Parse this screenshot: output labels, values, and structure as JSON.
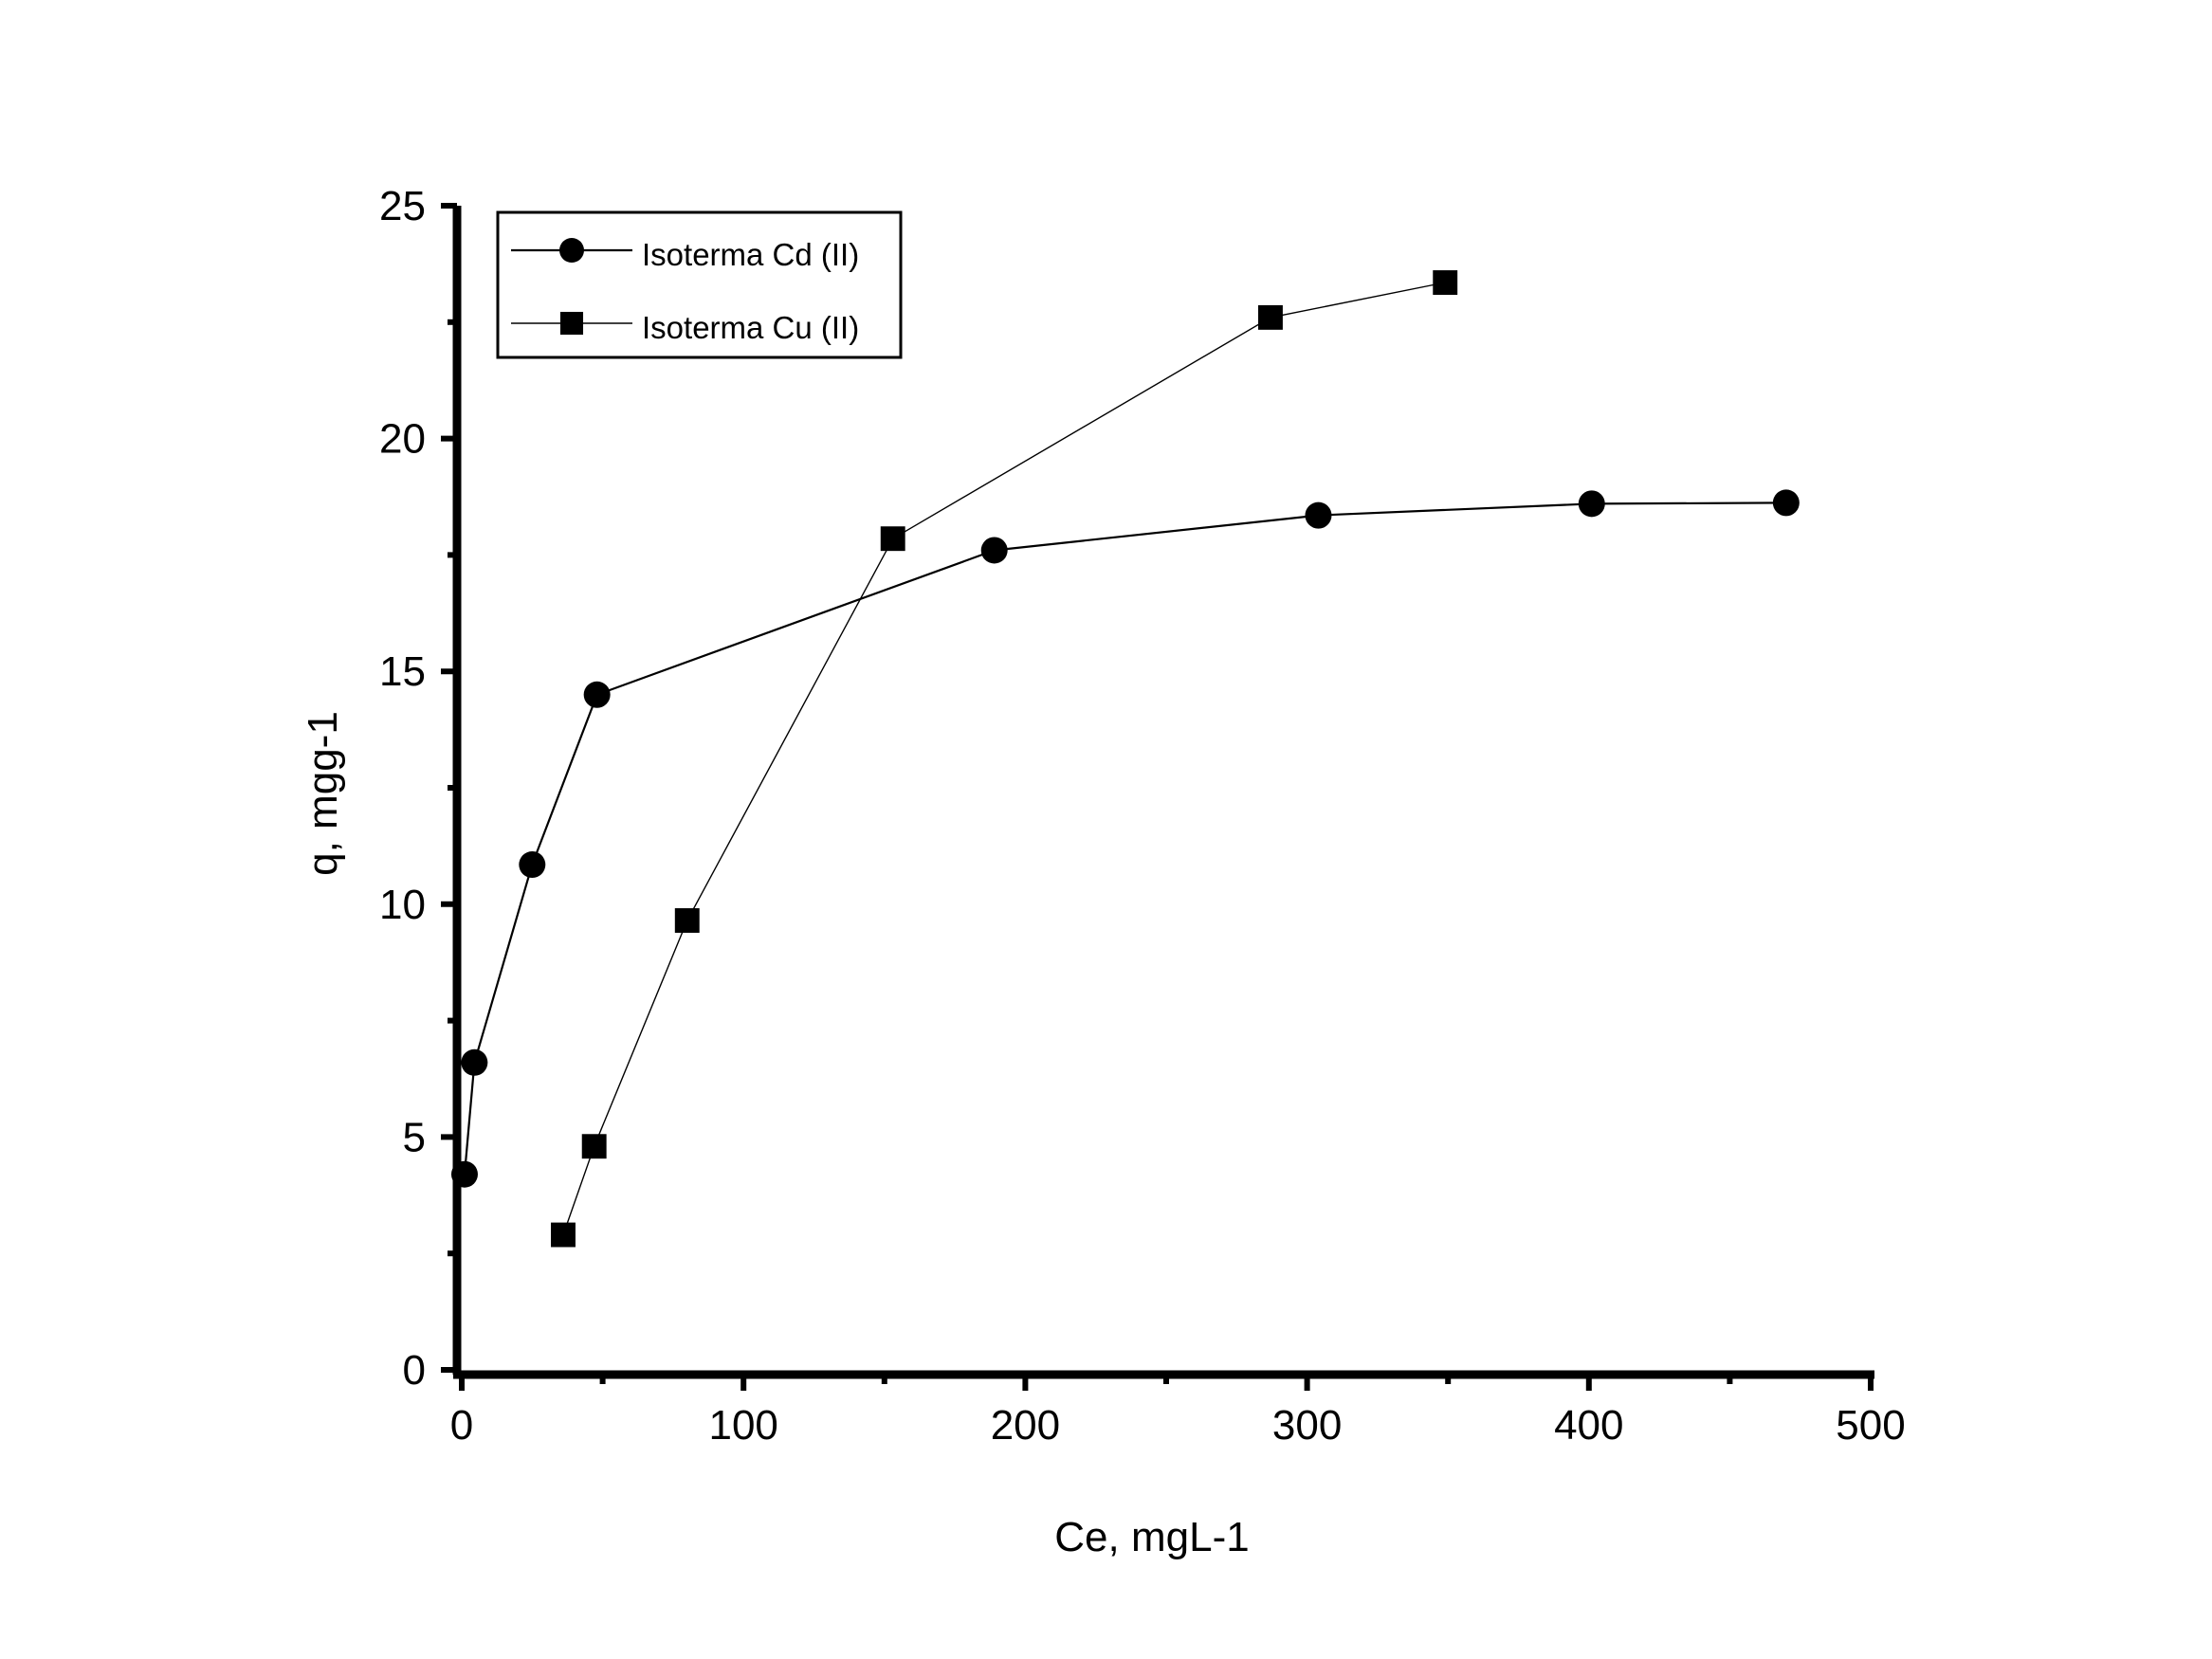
{
  "chart_data": {
    "type": "line",
    "title": "",
    "xlabel": "Ce, mgL-1",
    "ylabel": "q, mgg-1",
    "xlim": [
      0,
      500
    ],
    "ylim": [
      0,
      25
    ],
    "x_ticks": [
      0,
      100,
      200,
      300,
      400,
      500
    ],
    "y_ticks": [
      0,
      5,
      10,
      15,
      20,
      25
    ],
    "x_tick_labels": [
      "0",
      "100",
      "200",
      "300",
      "400",
      "500"
    ],
    "y_tick_labels": [
      "0",
      "5",
      "10",
      "15",
      "20",
      "25"
    ],
    "grid": false,
    "legend_position": "top-left",
    "series": [
      {
        "name": "Isoterma Cd (II)",
        "marker": "circle",
        "color": "#000000",
        "points": [
          [
            1,
            4.2
          ],
          [
            4.5,
            6.6
          ],
          [
            25,
            10.85
          ],
          [
            48,
            14.5
          ],
          [
            189,
            17.6
          ],
          [
            304,
            18.35
          ],
          [
            401,
            18.6
          ],
          [
            470,
            18.62
          ]
        ]
      },
      {
        "name": "Isoterma Cu (II)",
        "marker": "square",
        "color": "#000000",
        "points": [
          [
            36,
            2.9
          ],
          [
            47,
            4.8
          ],
          [
            80,
            9.65
          ],
          [
            153,
            17.85
          ],
          [
            287,
            22.6
          ],
          [
            349,
            23.35
          ]
        ]
      }
    ]
  }
}
